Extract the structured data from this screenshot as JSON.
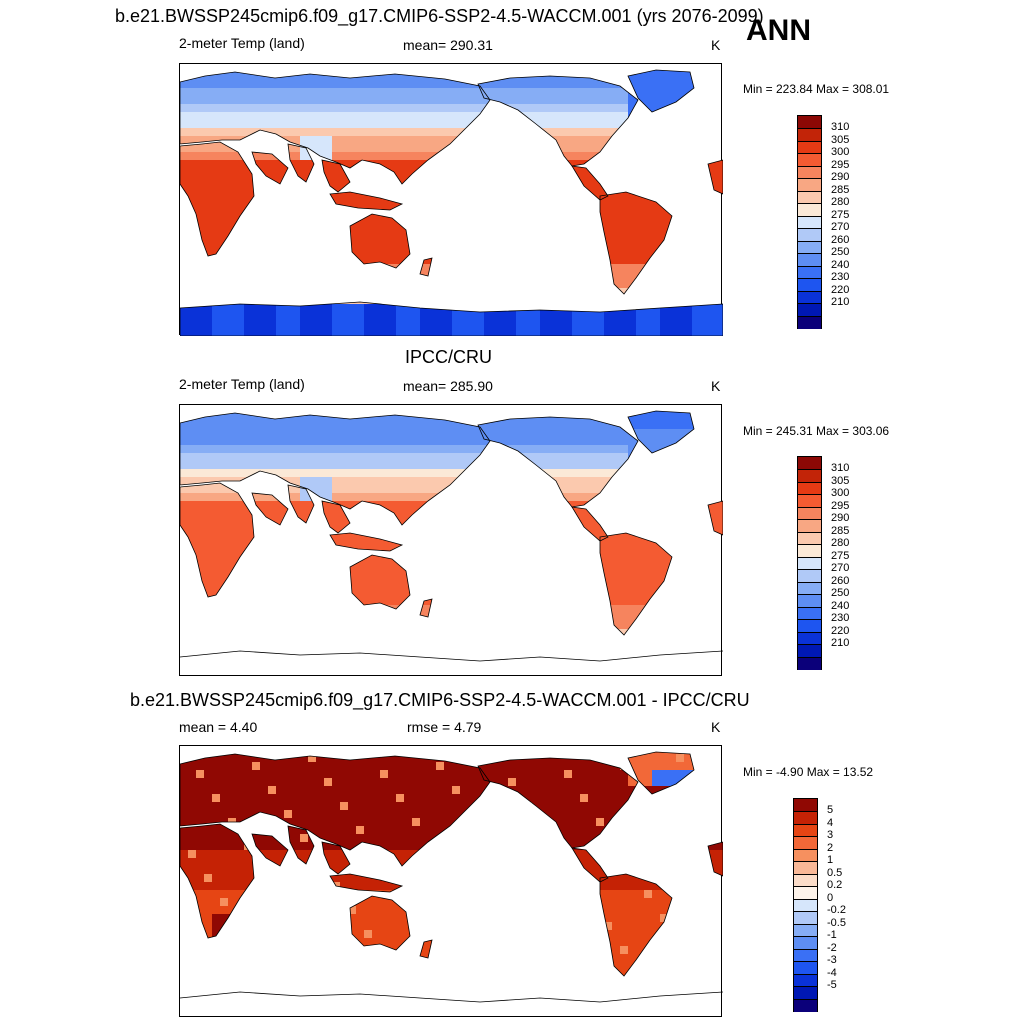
{
  "season": "ANN",
  "colors": {
    "temp": [
      "#0b007a",
      "#0018b4",
      "#0a32d8",
      "#1e55f0",
      "#3a70f5",
      "#5e8ef3",
      "#86adf5",
      "#b0c9f7",
      "#d6e6fb",
      "#fbe9d7",
      "#fbc9ae",
      "#f8a783",
      "#f6845e",
      "#f45b32",
      "#e53a14",
      "#c22408",
      "#8c0805"
    ],
    "diff": [
      "#0b007a",
      "#0018b4",
      "#0a32d8",
      "#1e55f0",
      "#3a70f5",
      "#5e8ef3",
      "#86adf5",
      "#b0c9f7",
      "#d6e6fb",
      "#fdf3ea",
      "#fbdcc8",
      "#f9b897",
      "#f6905f",
      "#f26838",
      "#e64514",
      "#c52205",
      "#900803"
    ]
  },
  "chart_data": [
    {
      "type": "heatmap",
      "title": "b.e21.BWSSP245cmip6.f09_g17.CMIP6-SSP2-4.5-WACCM.001 (yrs 2076-2099)",
      "left_label": "2-meter Temp (land)",
      "center_label": "mean= 290.31",
      "units": "K",
      "minmax": "Min = 223.84 Max = 308.01",
      "colorbar_ticks": [
        "310",
        "305",
        "300",
        "295",
        "290",
        "285",
        "280",
        "275",
        "270",
        "260",
        "250",
        "240",
        "230",
        "220",
        "210"
      ]
    },
    {
      "type": "heatmap",
      "title": "IPCC/CRU",
      "left_label": "2-meter Temp (land)",
      "center_label": "mean= 285.90",
      "units": "K",
      "minmax": "Min = 245.31 Max = 303.06",
      "colorbar_ticks": [
        "310",
        "305",
        "300",
        "295",
        "290",
        "285",
        "280",
        "275",
        "270",
        "260",
        "250",
        "240",
        "230",
        "220",
        "210"
      ]
    },
    {
      "type": "heatmap",
      "title": "b.e21.BWSSP245cmip6.f09_g17.CMIP6-SSP2-4.5-WACCM.001 - IPCC/CRU",
      "left_label": "mean =   4.40",
      "center_label": "rmse =   4.79",
      "units": "K",
      "minmax": "Min =  -4.90 Max =  13.52",
      "colorbar_ticks": [
        "5",
        "4",
        "3",
        "2",
        "1",
        "0.5",
        "0.2",
        "0",
        "-0.2",
        "-0.5",
        "-1",
        "-2",
        "-3",
        "-4",
        "-5"
      ]
    }
  ]
}
